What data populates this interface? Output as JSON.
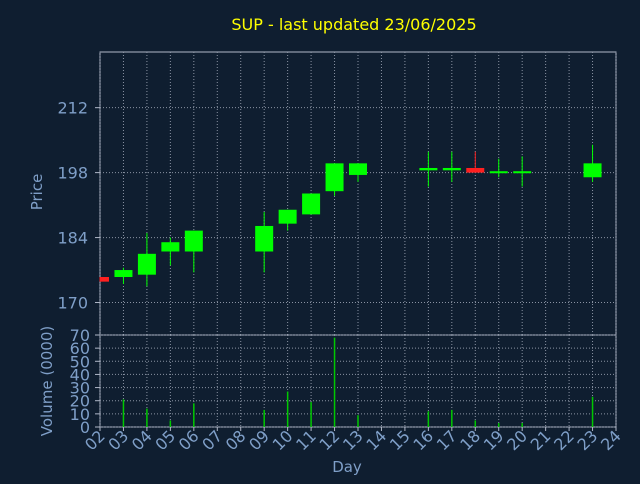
{
  "colors": {
    "background": "#0f1e30",
    "title": "#ffff00",
    "axis_text": "#7f9fc8",
    "plot_frame": "#b0b8c8",
    "grid": "#8a93a3",
    "up": "#00ff00",
    "down": "#ff2020",
    "volume_bar": "#00c800"
  },
  "chart_data": [
    {
      "type": "candlestick",
      "title": "SUP - last updated 23/06/2025",
      "ylabel": "Price",
      "ylim": [
        163,
        224
      ],
      "yticks": [
        170,
        184,
        198,
        212
      ],
      "grid": true,
      "days": [
        "02",
        "03",
        "04",
        "05",
        "06",
        "07",
        "08",
        "09",
        "10",
        "11",
        "12",
        "13",
        "14",
        "15",
        "16",
        "17",
        "18",
        "19",
        "20",
        "21",
        "22",
        "23",
        "24"
      ],
      "candles": [
        {
          "day": "02",
          "open": 175.5,
          "close": 174.5,
          "high": 175.5,
          "low": 174.5
        },
        {
          "day": "03",
          "open": 175.5,
          "close": 177.0,
          "high": 177.5,
          "low": 174.0
        },
        {
          "day": "04",
          "open": 176.0,
          "close": 180.5,
          "high": 185.0,
          "low": 173.5
        },
        {
          "day": "05",
          "open": 181.0,
          "close": 183.0,
          "high": 184.0,
          "low": 178.0
        },
        {
          "day": "06",
          "open": 181.0,
          "close": 185.5,
          "high": 185.5,
          "low": 176.5
        },
        {
          "day": "09",
          "open": 181.0,
          "close": 186.5,
          "high": 189.5,
          "low": 176.5
        },
        {
          "day": "10",
          "open": 187.0,
          "close": 190.0,
          "high": 190.0,
          "low": 185.5
        },
        {
          "day": "11",
          "open": 189.0,
          "close": 193.5,
          "high": 193.5,
          "low": 189.0
        },
        {
          "day": "12",
          "open": 194.0,
          "close": 200.0,
          "high": 200.0,
          "low": 193.0
        },
        {
          "day": "13",
          "open": 197.5,
          "close": 200.0,
          "high": 200.0,
          "low": 196.0
        },
        {
          "day": "16",
          "open": 198.5,
          "close": 199.0,
          "high": 202.5,
          "low": 195.0
        },
        {
          "day": "17",
          "open": 198.5,
          "close": 199.0,
          "high": 202.5,
          "low": 196.0
        },
        {
          "day": "18",
          "open": 199.0,
          "close": 198.0,
          "high": 202.5,
          "low": 198.0
        },
        {
          "day": "19",
          "open": 198.0,
          "close": 198.3,
          "high": 201.0,
          "low": 197.0
        },
        {
          "day": "20",
          "open": 198.0,
          "close": 198.3,
          "high": 201.5,
          "low": 195.0
        },
        {
          "day": "23",
          "open": 197.0,
          "close": 200.0,
          "high": 204.0,
          "low": 196.0
        }
      ]
    },
    {
      "type": "bar",
      "ylabel": "Volume (0000)",
      "xlabel": "Day",
      "ylim": [
        0,
        70
      ],
      "yticks": [
        0,
        10,
        20,
        30,
        40,
        50,
        60,
        70
      ],
      "grid": true,
      "x": [
        "03",
        "04",
        "05",
        "06",
        "09",
        "10",
        "11",
        "12",
        "13",
        "16",
        "17",
        "18",
        "19",
        "20",
        "23"
      ],
      "values": [
        21,
        14,
        5,
        18,
        13,
        27,
        19,
        68,
        9,
        12,
        13,
        5,
        3,
        3,
        23
      ]
    }
  ]
}
